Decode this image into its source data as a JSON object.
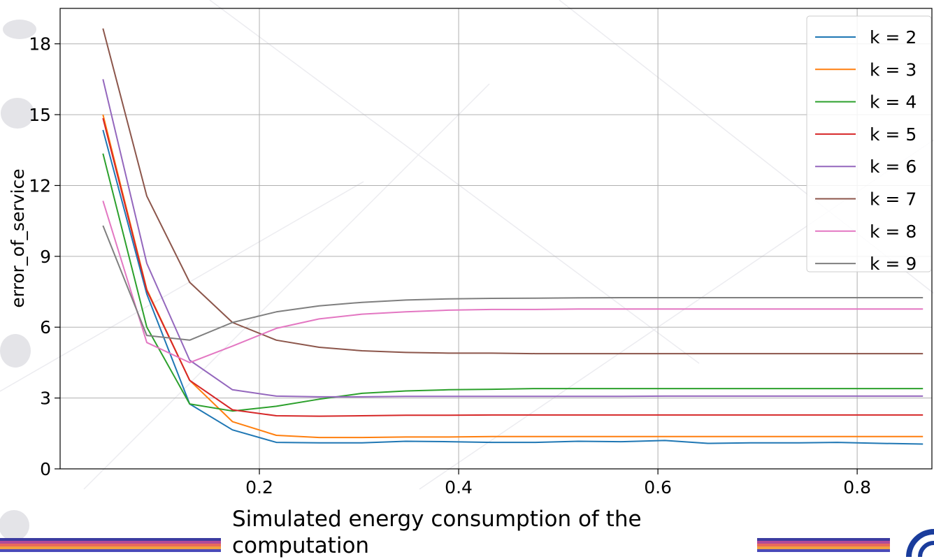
{
  "chart_data": {
    "type": "line",
    "title": "",
    "xlabel": "Simulated energy consumption of the computation",
    "ylabel": "error_of_service",
    "xlim": [
      0.0,
      0.875
    ],
    "ylim": [
      0,
      19.5
    ],
    "xticks": [
      0.2,
      0.4,
      0.6,
      0.8
    ],
    "xtick_labels": [
      "0.2",
      "0.4",
      "0.6",
      "0.8"
    ],
    "yticks": [
      0,
      3,
      6,
      9,
      12,
      15,
      18
    ],
    "ytick_labels": [
      "0",
      "3",
      "6",
      "9",
      "12",
      "15",
      "18"
    ],
    "grid": true,
    "legend_position": "top-right",
    "x": [
      0.043,
      0.087,
      0.13,
      0.173,
      0.217,
      0.26,
      0.303,
      0.347,
      0.39,
      0.433,
      0.477,
      0.52,
      0.563,
      0.607,
      0.65,
      0.693,
      0.737,
      0.78,
      0.823,
      0.866
    ],
    "series": [
      {
        "name": "k = 2",
        "color": "#1f77b4",
        "values": [
          14.35,
          7.4,
          2.75,
          1.65,
          1.12,
          1.1,
          1.1,
          1.17,
          1.15,
          1.12,
          1.12,
          1.17,
          1.15,
          1.2,
          1.08,
          1.1,
          1.1,
          1.12,
          1.08,
          1.05
        ]
      },
      {
        "name": "k = 3",
        "color": "#ff7f0e",
        "values": [
          15.0,
          7.6,
          3.75,
          2.0,
          1.42,
          1.33,
          1.33,
          1.35,
          1.35,
          1.37,
          1.37,
          1.37,
          1.37,
          1.37,
          1.37,
          1.37,
          1.37,
          1.37,
          1.37,
          1.37
        ]
      },
      {
        "name": "k = 4",
        "color": "#2ca02c",
        "values": [
          13.35,
          6.0,
          2.75,
          2.45,
          2.65,
          2.95,
          3.2,
          3.3,
          3.35,
          3.37,
          3.4,
          3.4,
          3.4,
          3.4,
          3.4,
          3.4,
          3.4,
          3.4,
          3.4,
          3.4
        ]
      },
      {
        "name": "k = 5",
        "color": "#d62728",
        "values": [
          14.85,
          7.55,
          3.75,
          2.5,
          2.25,
          2.23,
          2.25,
          2.27,
          2.27,
          2.28,
          2.28,
          2.28,
          2.28,
          2.28,
          2.28,
          2.28,
          2.28,
          2.28,
          2.28,
          2.28
        ]
      },
      {
        "name": "k = 6",
        "color": "#9467bd",
        "values": [
          16.5,
          8.7,
          4.6,
          3.35,
          3.08,
          3.05,
          3.05,
          3.07,
          3.07,
          3.07,
          3.07,
          3.07,
          3.07,
          3.08,
          3.08,
          3.08,
          3.08,
          3.08,
          3.08,
          3.08
        ]
      },
      {
        "name": "k = 7",
        "color": "#8c564b",
        "values": [
          18.65,
          11.55,
          7.9,
          6.2,
          5.45,
          5.15,
          5.0,
          4.93,
          4.9,
          4.9,
          4.88,
          4.88,
          4.88,
          4.88,
          4.88,
          4.88,
          4.88,
          4.88,
          4.88,
          4.88
        ]
      },
      {
        "name": "k = 8",
        "color": "#e377c2",
        "values": [
          11.35,
          5.35,
          4.5,
          5.2,
          5.95,
          6.35,
          6.55,
          6.65,
          6.72,
          6.75,
          6.75,
          6.77,
          6.77,
          6.77,
          6.77,
          6.77,
          6.77,
          6.77,
          6.77,
          6.77
        ]
      },
      {
        "name": "k = 9",
        "color": "#7f7f7f",
        "values": [
          10.3,
          5.65,
          5.45,
          6.2,
          6.65,
          6.9,
          7.05,
          7.15,
          7.2,
          7.22,
          7.23,
          7.24,
          7.25,
          7.25,
          7.25,
          7.25,
          7.25,
          7.25,
          7.25,
          7.25
        ]
      }
    ]
  }
}
